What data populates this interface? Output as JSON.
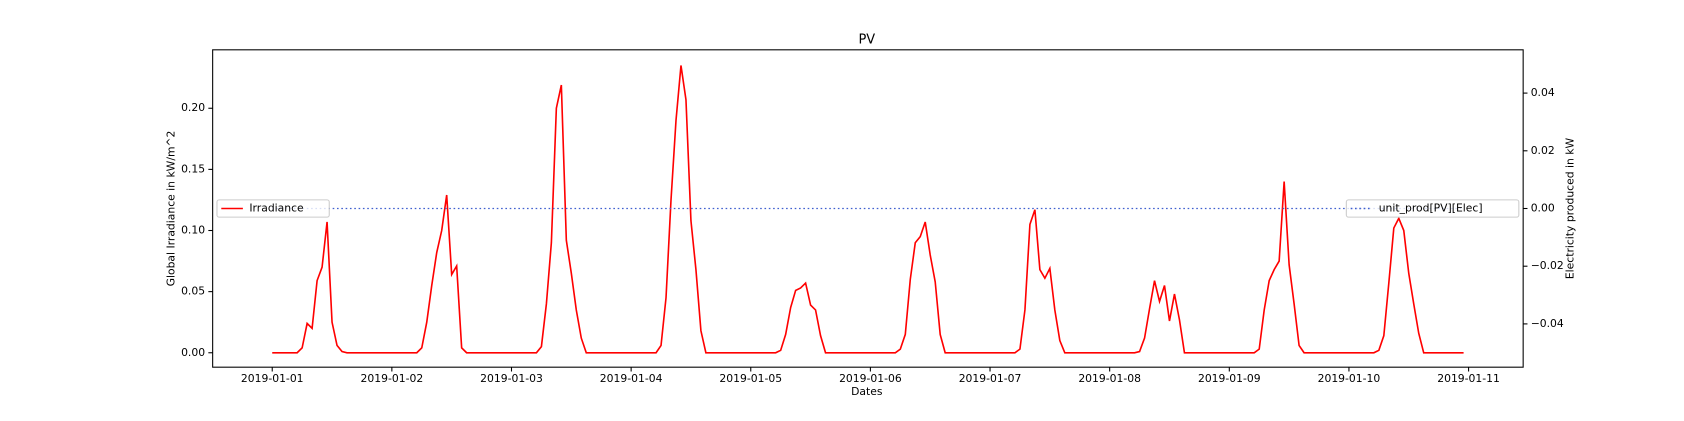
{
  "chart_data": {
    "type": "line",
    "title": "PV",
    "x_label": "Dates",
    "y_label": "Global Irradiance in kW/m^2",
    "y2_label": "Electricity produced in kW",
    "x": [
      "2019-01-01 00:00",
      "2019-01-01 01:00",
      "2019-01-01 02:00",
      "2019-01-01 03:00",
      "2019-01-01 04:00",
      "2019-01-01 05:00",
      "2019-01-01 06:00",
      "2019-01-01 07:00",
      "2019-01-01 08:00",
      "2019-01-01 09:00",
      "2019-01-01 10:00",
      "2019-01-01 11:00",
      "2019-01-01 12:00",
      "2019-01-01 13:00",
      "2019-01-01 14:00",
      "2019-01-01 15:00",
      "2019-01-01 16:00",
      "2019-01-01 17:00",
      "2019-01-01 18:00",
      "2019-01-01 19:00",
      "2019-01-01 20:00",
      "2019-01-01 21:00",
      "2019-01-01 22:00",
      "2019-01-01 23:00",
      "2019-01-02 00:00",
      "2019-01-02 01:00",
      "2019-01-02 02:00",
      "2019-01-02 03:00",
      "2019-01-02 04:00",
      "2019-01-02 05:00",
      "2019-01-02 06:00",
      "2019-01-02 07:00",
      "2019-01-02 08:00",
      "2019-01-02 09:00",
      "2019-01-02 10:00",
      "2019-01-02 11:00",
      "2019-01-02 12:00",
      "2019-01-02 13:00",
      "2019-01-02 14:00",
      "2019-01-02 15:00",
      "2019-01-02 16:00",
      "2019-01-02 17:00",
      "2019-01-02 18:00",
      "2019-01-02 19:00",
      "2019-01-02 20:00",
      "2019-01-02 21:00",
      "2019-01-02 22:00",
      "2019-01-02 23:00",
      "2019-01-03 00:00",
      "2019-01-03 01:00",
      "2019-01-03 02:00",
      "2019-01-03 03:00",
      "2019-01-03 04:00",
      "2019-01-03 05:00",
      "2019-01-03 06:00",
      "2019-01-03 07:00",
      "2019-01-03 08:00",
      "2019-01-03 09:00",
      "2019-01-03 10:00",
      "2019-01-03 11:00",
      "2019-01-03 12:00",
      "2019-01-03 13:00",
      "2019-01-03 14:00",
      "2019-01-03 15:00",
      "2019-01-03 16:00",
      "2019-01-03 17:00",
      "2019-01-03 18:00",
      "2019-01-03 19:00",
      "2019-01-03 20:00",
      "2019-01-03 21:00",
      "2019-01-03 22:00",
      "2019-01-03 23:00",
      "2019-01-04 00:00",
      "2019-01-04 01:00",
      "2019-01-04 02:00",
      "2019-01-04 03:00",
      "2019-01-04 04:00",
      "2019-01-04 05:00",
      "2019-01-04 06:00",
      "2019-01-04 07:00",
      "2019-01-04 08:00",
      "2019-01-04 09:00",
      "2019-01-04 10:00",
      "2019-01-04 11:00",
      "2019-01-04 12:00",
      "2019-01-04 13:00",
      "2019-01-04 14:00",
      "2019-01-04 15:00",
      "2019-01-04 16:00",
      "2019-01-04 17:00",
      "2019-01-04 18:00",
      "2019-01-04 19:00",
      "2019-01-04 20:00",
      "2019-01-04 21:00",
      "2019-01-04 22:00",
      "2019-01-04 23:00",
      "2019-01-05 00:00",
      "2019-01-05 01:00",
      "2019-01-05 02:00",
      "2019-01-05 03:00",
      "2019-01-05 04:00",
      "2019-01-05 05:00",
      "2019-01-05 06:00",
      "2019-01-05 07:00",
      "2019-01-05 08:00",
      "2019-01-05 09:00",
      "2019-01-05 10:00",
      "2019-01-05 11:00",
      "2019-01-05 12:00",
      "2019-01-05 13:00",
      "2019-01-05 14:00",
      "2019-01-05 15:00",
      "2019-01-05 16:00",
      "2019-01-05 17:00",
      "2019-01-05 18:00",
      "2019-01-05 19:00",
      "2019-01-05 20:00",
      "2019-01-05 21:00",
      "2019-01-05 22:00",
      "2019-01-05 23:00",
      "2019-01-06 00:00",
      "2019-01-06 01:00",
      "2019-01-06 02:00",
      "2019-01-06 03:00",
      "2019-01-06 04:00",
      "2019-01-06 05:00",
      "2019-01-06 06:00",
      "2019-01-06 07:00",
      "2019-01-06 08:00",
      "2019-01-06 09:00",
      "2019-01-06 10:00",
      "2019-01-06 11:00",
      "2019-01-06 12:00",
      "2019-01-06 13:00",
      "2019-01-06 14:00",
      "2019-01-06 15:00",
      "2019-01-06 16:00",
      "2019-01-06 17:00",
      "2019-01-06 18:00",
      "2019-01-06 19:00",
      "2019-01-06 20:00",
      "2019-01-06 21:00",
      "2019-01-06 22:00",
      "2019-01-06 23:00",
      "2019-01-07 00:00",
      "2019-01-07 01:00",
      "2019-01-07 02:00",
      "2019-01-07 03:00",
      "2019-01-07 04:00",
      "2019-01-07 05:00",
      "2019-01-07 06:00",
      "2019-01-07 07:00",
      "2019-01-07 08:00",
      "2019-01-07 09:00",
      "2019-01-07 10:00",
      "2019-01-07 11:00",
      "2019-01-07 12:00",
      "2019-01-07 13:00",
      "2019-01-07 14:00",
      "2019-01-07 15:00",
      "2019-01-07 16:00",
      "2019-01-07 17:00",
      "2019-01-07 18:00",
      "2019-01-07 19:00",
      "2019-01-07 20:00",
      "2019-01-07 21:00",
      "2019-01-07 22:00",
      "2019-01-07 23:00",
      "2019-01-08 00:00",
      "2019-01-08 01:00",
      "2019-01-08 02:00",
      "2019-01-08 03:00",
      "2019-01-08 04:00",
      "2019-01-08 05:00",
      "2019-01-08 06:00",
      "2019-01-08 07:00",
      "2019-01-08 08:00",
      "2019-01-08 09:00",
      "2019-01-08 10:00",
      "2019-01-08 11:00",
      "2019-01-08 12:00",
      "2019-01-08 13:00",
      "2019-01-08 14:00",
      "2019-01-08 15:00",
      "2019-01-08 16:00",
      "2019-01-08 17:00",
      "2019-01-08 18:00",
      "2019-01-08 19:00",
      "2019-01-08 20:00",
      "2019-01-08 21:00",
      "2019-01-08 22:00",
      "2019-01-08 23:00",
      "2019-01-09 00:00",
      "2019-01-09 01:00",
      "2019-01-09 02:00",
      "2019-01-09 03:00",
      "2019-01-09 04:00",
      "2019-01-09 05:00",
      "2019-01-09 06:00",
      "2019-01-09 07:00",
      "2019-01-09 08:00",
      "2019-01-09 09:00",
      "2019-01-09 10:00",
      "2019-01-09 11:00",
      "2019-01-09 12:00",
      "2019-01-09 13:00",
      "2019-01-09 14:00",
      "2019-01-09 15:00",
      "2019-01-09 16:00",
      "2019-01-09 17:00",
      "2019-01-09 18:00",
      "2019-01-09 19:00",
      "2019-01-09 20:00",
      "2019-01-09 21:00",
      "2019-01-09 22:00",
      "2019-01-09 23:00",
      "2019-01-10 00:00",
      "2019-01-10 01:00",
      "2019-01-10 02:00",
      "2019-01-10 03:00",
      "2019-01-10 04:00",
      "2019-01-10 05:00",
      "2019-01-10 06:00",
      "2019-01-10 07:00",
      "2019-01-10 08:00",
      "2019-01-10 09:00",
      "2019-01-10 10:00",
      "2019-01-10 11:00",
      "2019-01-10 12:00",
      "2019-01-10 13:00",
      "2019-01-10 14:00",
      "2019-01-10 15:00",
      "2019-01-10 16:00",
      "2019-01-10 17:00",
      "2019-01-10 18:00",
      "2019-01-10 19:00",
      "2019-01-10 20:00",
      "2019-01-10 21:00",
      "2019-01-10 22:00",
      "2019-01-10 23:00"
    ],
    "series": [
      {
        "name": "Irradiance",
        "color": "#ff0000",
        "style": "solid",
        "legend": "center left",
        "values": [
          0,
          0,
          0,
          0,
          0,
          0,
          0.004,
          0.024,
          0.02,
          0.059,
          0.07,
          0.107,
          0.025,
          0.006,
          0.001,
          0,
          0,
          0,
          0,
          0,
          0,
          0,
          0,
          0,
          0,
          0,
          0,
          0,
          0,
          0,
          0.004,
          0.025,
          0.055,
          0.082,
          0.1,
          0.129,
          0.064,
          0.071,
          0.004,
          0,
          0,
          0,
          0,
          0,
          0,
          0,
          0,
          0,
          0,
          0,
          0,
          0,
          0,
          0,
          0.005,
          0.04,
          0.09,
          0.2,
          0.219,
          0.092,
          0.065,
          0.035,
          0.012,
          0,
          0,
          0,
          0,
          0,
          0,
          0,
          0,
          0,
          0,
          0,
          0,
          0,
          0,
          0,
          0.006,
          0.045,
          0.125,
          0.19,
          0.235,
          0.207,
          0.108,
          0.068,
          0.018,
          0,
          0,
          0,
          0,
          0,
          0,
          0,
          0,
          0,
          0,
          0,
          0,
          0,
          0,
          0,
          0.002,
          0.015,
          0.037,
          0.051,
          0.053,
          0.057,
          0.039,
          0.035,
          0.014,
          0,
          0,
          0,
          0,
          0,
          0,
          0,
          0,
          0,
          0,
          0,
          0,
          0,
          0,
          0,
          0.003,
          0.015,
          0.06,
          0.09,
          0.095,
          0.107,
          0.08,
          0.058,
          0.015,
          0,
          0,
          0,
          0,
          0,
          0,
          0,
          0,
          0,
          0,
          0,
          0,
          0,
          0,
          0,
          0.003,
          0.035,
          0.105,
          0.117,
          0.068,
          0.061,
          0.069,
          0.035,
          0.01,
          0,
          0,
          0,
          0,
          0,
          0,
          0,
          0,
          0,
          0,
          0,
          0,
          0,
          0,
          0,
          0.001,
          0.012,
          0.036,
          0.059,
          0.042,
          0.055,
          0.026,
          0.048,
          0.027,
          0,
          0,
          0,
          0,
          0,
          0,
          0,
          0,
          0,
          0,
          0,
          0,
          0,
          0,
          0,
          0.003,
          0.035,
          0.059,
          0.068,
          0.075,
          0.14,
          0.072,
          0.04,
          0.006,
          0,
          0,
          0,
          0,
          0,
          0,
          0,
          0,
          0,
          0,
          0,
          0,
          0,
          0,
          0,
          0.002,
          0.014,
          0.057,
          0.102,
          0.11,
          0.1,
          0.065,
          0.04,
          0.016,
          0,
          0,
          0,
          0,
          0,
          0,
          0,
          0,
          0
        ]
      },
      {
        "name": "unit_prod[PV][Elec]",
        "color": "#3f5fcf",
        "style": "dotted",
        "axis": "y2",
        "legend": "center right",
        "values": [
          0,
          0,
          0,
          0,
          0,
          0,
          0,
          0,
          0,
          0,
          0,
          0,
          0,
          0,
          0,
          0,
          0,
          0,
          0,
          0,
          0,
          0,
          0,
          0,
          0,
          0,
          0,
          0,
          0,
          0,
          0,
          0,
          0,
          0,
          0,
          0,
          0,
          0,
          0,
          0,
          0,
          0,
          0,
          0,
          0,
          0,
          0,
          0,
          0,
          0,
          0,
          0,
          0,
          0,
          0,
          0,
          0,
          0,
          0,
          0,
          0,
          0,
          0,
          0,
          0,
          0,
          0,
          0,
          0,
          0,
          0,
          0,
          0,
          0,
          0,
          0,
          0,
          0,
          0,
          0,
          0,
          0,
          0,
          0,
          0,
          0,
          0,
          0,
          0,
          0,
          0,
          0,
          0,
          0,
          0,
          0,
          0,
          0,
          0,
          0,
          0,
          0,
          0,
          0,
          0,
          0,
          0,
          0,
          0,
          0,
          0,
          0,
          0,
          0,
          0,
          0,
          0,
          0,
          0,
          0,
          0,
          0,
          0,
          0,
          0,
          0,
          0,
          0,
          0,
          0,
          0,
          0,
          0,
          0,
          0,
          0,
          0,
          0,
          0,
          0,
          0,
          0,
          0,
          0,
          0,
          0,
          0,
          0,
          0,
          0,
          0,
          0,
          0,
          0,
          0,
          0,
          0,
          0,
          0,
          0,
          0,
          0,
          0,
          0,
          0,
          0,
          0,
          0,
          0,
          0,
          0,
          0,
          0,
          0,
          0,
          0,
          0,
          0,
          0,
          0,
          0,
          0,
          0,
          0,
          0,
          0,
          0,
          0,
          0,
          0,
          0,
          0,
          0,
          0,
          0,
          0,
          0,
          0,
          0,
          0,
          0,
          0,
          0,
          0,
          0,
          0,
          0,
          0,
          0,
          0,
          0,
          0,
          0,
          0,
          0,
          0,
          0,
          0,
          0,
          0,
          0,
          0,
          0,
          0,
          0,
          0,
          0,
          0,
          0,
          0,
          0,
          0,
          0,
          0,
          0,
          0,
          0,
          0,
          0,
          0
        ]
      }
    ],
    "xlim": [
      "2018-12-31 12:03",
      "2019-01-11 10:57"
    ],
    "xticks": [
      "2019-01-01",
      "2019-01-02",
      "2019-01-03",
      "2019-01-04",
      "2019-01-05",
      "2019-01-06",
      "2019-01-07",
      "2019-01-08",
      "2019-01-09",
      "2019-01-10",
      "2019-01-11"
    ],
    "ylim": [
      -0.0118,
      0.2478
    ],
    "yticks": [
      {
        "value": 0,
        "label": "0.00"
      },
      {
        "value": 0.05,
        "label": "0.05"
      },
      {
        "value": 0.1,
        "label": "0.10"
      },
      {
        "value": 0.15,
        "label": "0.15"
      },
      {
        "value": 0.2,
        "label": "0.20"
      }
    ],
    "y2lim": [
      -0.055,
      0.055
    ],
    "y2ticks": [
      {
        "value": -0.04,
        "label": "−0.04"
      },
      {
        "value": -0.02,
        "label": "−0.02"
      },
      {
        "value": 0,
        "label": "0.00"
      },
      {
        "value": 0.02,
        "label": "0.02"
      },
      {
        "value": 0.04,
        "label": "0.04"
      }
    ],
    "grid": false
  }
}
